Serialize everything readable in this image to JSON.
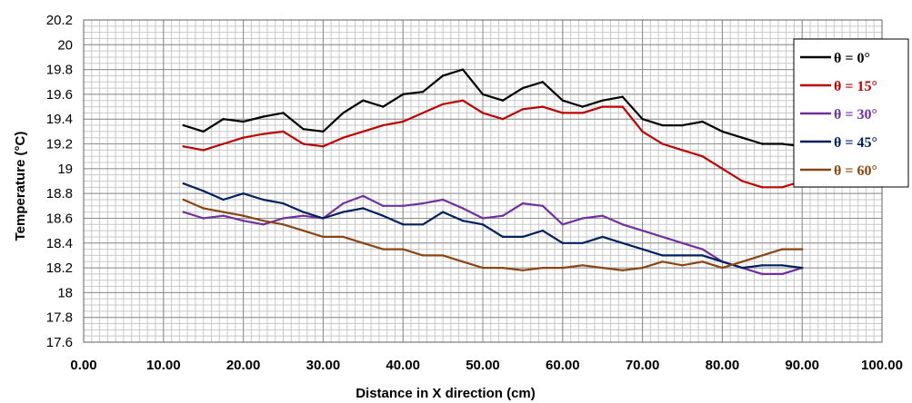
{
  "chart_data": {
    "type": "line",
    "title": "",
    "xlabel": "Distance in X direction (cm)",
    "ylabel": "Temperature (°C)",
    "xlim": [
      0,
      100
    ],
    "ylim": [
      17.6,
      20.2
    ],
    "x_ticks": [
      "0.00",
      "10.00",
      "20.00",
      "30.00",
      "40.00",
      "50.00",
      "60.00",
      "70.00",
      "80.00",
      "90.00",
      "100.00"
    ],
    "y_ticks": [
      "17.6",
      "17.8",
      "18",
      "18.2",
      "18.4",
      "18.6",
      "18.8",
      "19",
      "19.2",
      "19.4",
      "19.6",
      "19.8",
      "20",
      "20.2"
    ],
    "grid": true,
    "legend_position": "right",
    "x": [
      12.5,
      15,
      17.5,
      20,
      22.5,
      25,
      27.5,
      30,
      32.5,
      35,
      37.5,
      40,
      42.5,
      45,
      47.5,
      50,
      52.5,
      55,
      57.5,
      60,
      62.5,
      65,
      67.5,
      70,
      72.5,
      75,
      77.5,
      80,
      82.5,
      85,
      87.5,
      90
    ],
    "series": [
      {
        "name": "θ = 0°",
        "color": "#000000",
        "values": [
          19.35,
          19.3,
          19.4,
          19.38,
          19.42,
          19.45,
          19.32,
          19.3,
          19.45,
          19.55,
          19.5,
          19.6,
          19.62,
          19.75,
          19.8,
          19.6,
          19.55,
          19.65,
          19.7,
          19.55,
          19.5,
          19.55,
          19.58,
          19.4,
          19.35,
          19.35,
          19.38,
          19.3,
          19.25,
          19.2,
          19.2,
          19.18
        ]
      },
      {
        "name": "θ = 15°",
        "color": "#c00000",
        "values": [
          19.18,
          19.15,
          19.2,
          19.25,
          19.28,
          19.3,
          19.2,
          19.18,
          19.25,
          19.3,
          19.35,
          19.38,
          19.45,
          19.52,
          19.55,
          19.45,
          19.4,
          19.48,
          19.5,
          19.45,
          19.45,
          19.5,
          19.5,
          19.3,
          19.2,
          19.15,
          19.1,
          19.0,
          18.9,
          18.85,
          18.85,
          18.9
        ]
      },
      {
        "name": "θ = 30°",
        "color": "#7030a0",
        "values": [
          18.65,
          18.6,
          18.62,
          18.58,
          18.55,
          18.6,
          18.62,
          18.6,
          18.72,
          18.78,
          18.7,
          18.7,
          18.72,
          18.75,
          18.68,
          18.6,
          18.62,
          18.72,
          18.7,
          18.55,
          18.6,
          18.62,
          18.55,
          18.5,
          18.45,
          18.4,
          18.35,
          18.25,
          18.2,
          18.15,
          18.15,
          18.2
        ]
      },
      {
        "name": "θ = 45°",
        "color": "#002060",
        "values": [
          18.88,
          18.82,
          18.75,
          18.8,
          18.75,
          18.72,
          18.65,
          18.6,
          18.65,
          18.68,
          18.62,
          18.55,
          18.55,
          18.65,
          18.58,
          18.55,
          18.45,
          18.45,
          18.5,
          18.4,
          18.4,
          18.45,
          18.4,
          18.35,
          18.3,
          18.3,
          18.3,
          18.25,
          18.2,
          18.22,
          18.22,
          18.2
        ]
      },
      {
        "name": "θ = 60°",
        "color": "#8b4513",
        "values": [
          18.75,
          18.68,
          18.65,
          18.62,
          18.58,
          18.55,
          18.5,
          18.45,
          18.45,
          18.4,
          18.35,
          18.35,
          18.3,
          18.3,
          18.25,
          18.2,
          18.2,
          18.18,
          18.2,
          18.2,
          18.22,
          18.2,
          18.18,
          18.2,
          18.25,
          18.22,
          18.25,
          18.2,
          18.25,
          18.3,
          18.35,
          18.35
        ]
      }
    ]
  }
}
